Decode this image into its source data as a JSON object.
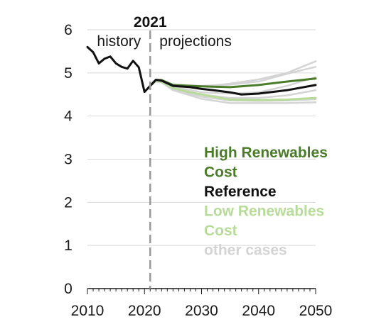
{
  "chart_data": {
    "type": "line",
    "xlim": [
      2010,
      2050
    ],
    "ylim": [
      0,
      6
    ],
    "x_ticks": [
      "2010",
      "2020",
      "2030",
      "2040",
      "2050"
    ],
    "y_ticks": [
      "0",
      "1",
      "2",
      "3",
      "4",
      "5",
      "6"
    ],
    "grid": "horizontal",
    "divider": {
      "x": 2021,
      "label": "2021"
    },
    "regions": {
      "left": "history",
      "right": "projections"
    },
    "colors": {
      "high_renewables_cost": "#4a7c2a",
      "reference": "#111111",
      "low_renewables_cost": "#b7dc99",
      "other_cases": "#d4d4d4",
      "grid": "#d9d9d9",
      "axis": "#1a1a1a",
      "divider": "#9a9a9a"
    },
    "legend": [
      {
        "lines": [
          "High Renewables",
          "Cost"
        ],
        "color_key": "high_renewables_cost"
      },
      {
        "lines": [
          "Reference"
        ],
        "color_key": "reference"
      },
      {
        "lines": [
          "Low Renewables",
          "Cost"
        ],
        "color_key": "low_renewables_cost"
      },
      {
        "lines": [
          "other cases"
        ],
        "color_key": "other_cases"
      }
    ],
    "history": {
      "color_key": "reference",
      "x": [
        2010,
        2011,
        2012,
        2013,
        2014,
        2015,
        2016,
        2017,
        2018,
        2019,
        2020,
        2021
      ],
      "y": [
        5.6,
        5.48,
        5.22,
        5.33,
        5.38,
        5.22,
        5.14,
        5.1,
        5.28,
        5.13,
        4.56,
        4.7
      ]
    },
    "series": [
      {
        "color_key": "other_cases",
        "x": [
          2021,
          2022,
          2023,
          2025,
          2030,
          2035,
          2040,
          2045,
          2050
        ],
        "y": [
          4.7,
          4.84,
          4.85,
          4.72,
          4.68,
          4.75,
          4.85,
          5.0,
          5.27
        ]
      },
      {
        "color_key": "other_cases",
        "x": [
          2021,
          2022,
          2023,
          2025,
          2030,
          2035,
          2040,
          2045,
          2050
        ],
        "y": [
          4.7,
          4.83,
          4.84,
          4.73,
          4.7,
          4.73,
          4.8,
          4.98,
          5.14
        ]
      },
      {
        "color_key": "other_cases",
        "x": [
          2021,
          2022,
          2023,
          2025,
          2030,
          2035,
          2040,
          2045,
          2050
        ],
        "y": [
          4.7,
          4.82,
          4.82,
          4.68,
          4.55,
          4.52,
          4.55,
          4.7,
          4.9
        ]
      },
      {
        "color_key": "other_cases",
        "x": [
          2021,
          2022,
          2023,
          2025,
          2030,
          2035,
          2040,
          2045,
          2050
        ],
        "y": [
          4.7,
          4.81,
          4.8,
          4.62,
          4.45,
          4.36,
          4.35,
          4.36,
          4.39
        ]
      },
      {
        "color_key": "other_cases",
        "x": [
          2021,
          2022,
          2023,
          2025,
          2030,
          2035,
          2040,
          2045,
          2050
        ],
        "y": [
          4.7,
          4.8,
          4.78,
          4.6,
          4.4,
          4.3,
          4.3,
          4.3,
          4.32
        ]
      },
      {
        "color_key": "other_cases",
        "x": [
          2021,
          2022,
          2023,
          2025,
          2030,
          2035,
          2040,
          2045,
          2050
        ],
        "y": [
          4.7,
          4.82,
          4.8,
          4.65,
          4.5,
          4.42,
          4.42,
          4.48,
          4.6
        ]
      },
      {
        "name": "Low Renewables Cost",
        "color_key": "low_renewables_cost",
        "x": [
          2021,
          2022,
          2023,
          2025,
          2028,
          2030,
          2032,
          2035,
          2040,
          2045,
          2050
        ],
        "y": [
          4.7,
          4.83,
          4.8,
          4.65,
          4.55,
          4.5,
          4.45,
          4.38,
          4.37,
          4.38,
          4.42
        ]
      },
      {
        "name": "High Renewables Cost",
        "color_key": "high_renewables_cost",
        "x": [
          2021,
          2022,
          2023,
          2025,
          2028,
          2030,
          2032,
          2035,
          2040,
          2045,
          2050
        ],
        "y": [
          4.7,
          4.84,
          4.83,
          4.72,
          4.7,
          4.69,
          4.68,
          4.67,
          4.72,
          4.8,
          4.87
        ]
      },
      {
        "name": "Reference",
        "color_key": "reference",
        "x": [
          2021,
          2022,
          2023,
          2025,
          2028,
          2030,
          2032,
          2035,
          2037,
          2040,
          2045,
          2050
        ],
        "y": [
          4.7,
          4.84,
          4.82,
          4.7,
          4.67,
          4.63,
          4.6,
          4.55,
          4.5,
          4.52,
          4.6,
          4.72
        ]
      }
    ]
  }
}
